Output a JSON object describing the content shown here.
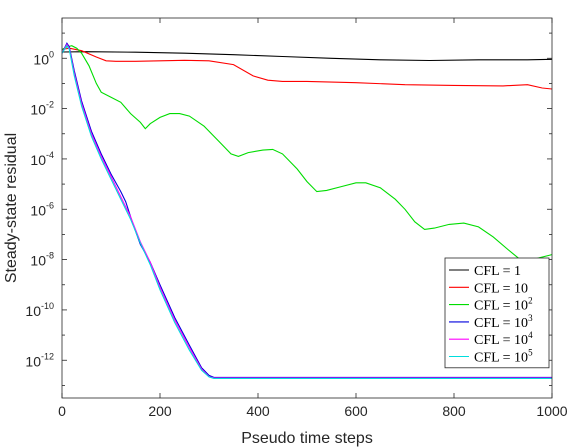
{
  "chart_data": {
    "type": "line",
    "xlabel": "Pseudo time steps",
    "ylabel": "Steady-state residual",
    "xlim": [
      0,
      1000
    ],
    "ylim_log10": [
      -13.5,
      1.6
    ],
    "yscale": "log",
    "x_ticks": [
      "0",
      "200",
      "400",
      "600",
      "800",
      "1000"
    ],
    "y_ticks": [
      {
        "base": "10",
        "exp": "0",
        "value": 0
      },
      {
        "base": "10",
        "exp": "-2",
        "value": -2
      },
      {
        "base": "10",
        "exp": "-4",
        "value": -4
      },
      {
        "base": "10",
        "exp": "-6",
        "value": -6
      },
      {
        "base": "10",
        "exp": "-8",
        "value": -8
      },
      {
        "base": "10",
        "exp": "-10",
        "value": -10
      },
      {
        "base": "10",
        "exp": "-12",
        "value": -12
      }
    ],
    "grid": false,
    "legend_position": "bottom-right",
    "series": [
      {
        "name": "CFL = 1",
        "label_main": "CFL = 1",
        "label_exp": "",
        "color": "#000000",
        "points": [
          [
            0,
            0.25
          ],
          [
            50,
            0.26
          ],
          [
            150,
            0.24
          ],
          [
            250,
            0.2
          ],
          [
            350,
            0.14
          ],
          [
            450,
            0.07
          ],
          [
            550,
            0.0
          ],
          [
            650,
            -0.06
          ],
          [
            750,
            -0.09
          ],
          [
            850,
            -0.06
          ],
          [
            950,
            -0.06
          ],
          [
            1000,
            -0.04
          ]
        ]
      },
      {
        "name": "CFL = 10",
        "label_main": "CFL = 10",
        "label_exp": "",
        "color": "#ff0000",
        "points": [
          [
            0,
            0.35
          ],
          [
            15,
            0.4
          ],
          [
            40,
            0.3
          ],
          [
            70,
            0.05
          ],
          [
            90,
            -0.1
          ],
          [
            110,
            -0.12
          ],
          [
            150,
            -0.12
          ],
          [
            200,
            -0.1
          ],
          [
            250,
            -0.08
          ],
          [
            300,
            -0.1
          ],
          [
            350,
            -0.25
          ],
          [
            390,
            -0.7
          ],
          [
            420,
            -0.87
          ],
          [
            450,
            -0.92
          ],
          [
            500,
            -0.92
          ],
          [
            600,
            -0.97
          ],
          [
            700,
            -1.05
          ],
          [
            800,
            -1.08
          ],
          [
            900,
            -1.1
          ],
          [
            950,
            -1.05
          ],
          [
            980,
            -1.18
          ],
          [
            1000,
            -1.22
          ]
        ]
      },
      {
        "name": "CFL = 10^2",
        "label_main": "CFL = 10",
        "label_exp": "2",
        "color": "#00dd00",
        "points": [
          [
            0,
            0.35
          ],
          [
            10,
            0.45
          ],
          [
            20,
            0.5
          ],
          [
            30,
            0.4
          ],
          [
            40,
            0.2
          ],
          [
            55,
            -0.3
          ],
          [
            70,
            -1.0
          ],
          [
            80,
            -1.35
          ],
          [
            100,
            -1.55
          ],
          [
            120,
            -1.75
          ],
          [
            140,
            -2.2
          ],
          [
            160,
            -2.55
          ],
          [
            170,
            -2.8
          ],
          [
            180,
            -2.6
          ],
          [
            200,
            -2.35
          ],
          [
            220,
            -2.2
          ],
          [
            240,
            -2.2
          ],
          [
            260,
            -2.3
          ],
          [
            290,
            -2.7
          ],
          [
            320,
            -3.3
          ],
          [
            345,
            -3.8
          ],
          [
            360,
            -3.9
          ],
          [
            380,
            -3.75
          ],
          [
            410,
            -3.65
          ],
          [
            430,
            -3.62
          ],
          [
            450,
            -3.8
          ],
          [
            480,
            -4.4
          ],
          [
            500,
            -4.9
          ],
          [
            520,
            -5.3
          ],
          [
            540,
            -5.25
          ],
          [
            570,
            -5.1
          ],
          [
            600,
            -4.95
          ],
          [
            620,
            -4.95
          ],
          [
            650,
            -5.15
          ],
          [
            680,
            -5.6
          ],
          [
            700,
            -6.0
          ],
          [
            720,
            -6.5
          ],
          [
            740,
            -6.8
          ],
          [
            760,
            -6.75
          ],
          [
            790,
            -6.6
          ],
          [
            820,
            -6.55
          ],
          [
            850,
            -6.7
          ],
          [
            880,
            -7.1
          ],
          [
            910,
            -7.6
          ],
          [
            935,
            -8.0
          ],
          [
            950,
            -8.15
          ],
          [
            970,
            -7.95
          ],
          [
            1000,
            -7.8
          ]
        ]
      },
      {
        "name": "CFL = 10^3",
        "label_main": "CFL = 10",
        "label_exp": "3",
        "color": "#0000dd",
        "points": [
          [
            0,
            0.2
          ],
          [
            10,
            0.6
          ],
          [
            15,
            0.45
          ],
          [
            25,
            -0.5
          ],
          [
            40,
            -1.7
          ],
          [
            60,
            -2.9
          ],
          [
            80,
            -3.8
          ],
          [
            100,
            -4.6
          ],
          [
            120,
            -5.3
          ],
          [
            130,
            -5.7
          ],
          [
            145,
            -6.6
          ],
          [
            160,
            -7.4
          ],
          [
            180,
            -8.1
          ],
          [
            200,
            -9.0
          ],
          [
            230,
            -10.3
          ],
          [
            260,
            -11.4
          ],
          [
            285,
            -12.3
          ],
          [
            300,
            -12.6
          ],
          [
            310,
            -12.68
          ],
          [
            400,
            -12.68
          ],
          [
            600,
            -12.68
          ],
          [
            800,
            -12.68
          ],
          [
            1000,
            -12.68
          ]
        ]
      },
      {
        "name": "CFL = 10^4",
        "label_main": "CFL = 10",
        "label_exp": "4",
        "color": "#ff00ff",
        "points": [
          [
            0,
            0.2
          ],
          [
            10,
            0.55
          ],
          [
            15,
            0.4
          ],
          [
            25,
            -0.6
          ],
          [
            40,
            -1.8
          ],
          [
            60,
            -3.0
          ],
          [
            80,
            -3.9
          ],
          [
            100,
            -4.7
          ],
          [
            120,
            -5.5
          ],
          [
            140,
            -6.3
          ],
          [
            160,
            -7.3
          ],
          [
            180,
            -8.1
          ],
          [
            200,
            -9.1
          ],
          [
            230,
            -10.4
          ],
          [
            260,
            -11.5
          ],
          [
            285,
            -12.35
          ],
          [
            300,
            -12.65
          ],
          [
            310,
            -12.7
          ],
          [
            400,
            -12.7
          ],
          [
            600,
            -12.7
          ],
          [
            800,
            -12.7
          ],
          [
            1000,
            -12.7
          ]
        ]
      },
      {
        "name": "CFL = 10^5",
        "label_main": "CFL = 10",
        "label_exp": "5",
        "color": "#00dddd",
        "points": [
          [
            0,
            0.2
          ],
          [
            10,
            0.5
          ],
          [
            15,
            0.35
          ],
          [
            25,
            -0.7
          ],
          [
            40,
            -1.9
          ],
          [
            60,
            -3.1
          ],
          [
            80,
            -4.0
          ],
          [
            100,
            -4.8
          ],
          [
            120,
            -5.6
          ],
          [
            140,
            -6.4
          ],
          [
            160,
            -7.35
          ],
          [
            180,
            -8.2
          ],
          [
            200,
            -9.2
          ],
          [
            230,
            -10.5
          ],
          [
            260,
            -11.6
          ],
          [
            285,
            -12.4
          ],
          [
            300,
            -12.66
          ],
          [
            310,
            -12.72
          ],
          [
            400,
            -12.72
          ],
          [
            600,
            -12.72
          ],
          [
            800,
            -12.72
          ],
          [
            1000,
            -12.72
          ]
        ]
      }
    ]
  }
}
